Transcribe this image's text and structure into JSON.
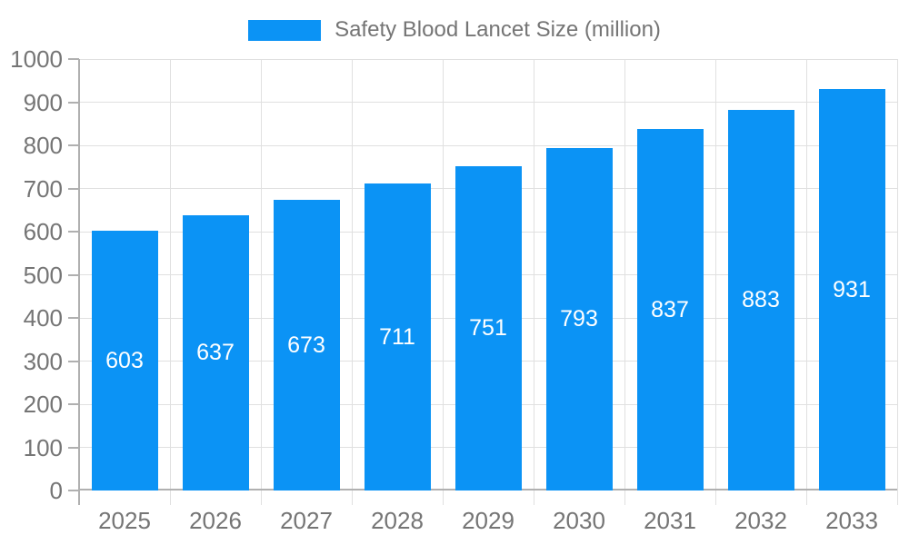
{
  "chart_data": {
    "type": "bar",
    "title": "Safety Blood Lancet Size (million)",
    "categories": [
      "2025",
      "2026",
      "2027",
      "2028",
      "2029",
      "2030",
      "2031",
      "2032",
      "2033"
    ],
    "values": [
      603,
      637,
      673,
      711,
      751,
      793,
      837,
      883,
      931
    ],
    "xlabel": "",
    "ylabel": "",
    "ylim": [
      0,
      1000
    ],
    "ytick_step": 100,
    "grid": true,
    "legend_position": "top",
    "colors": {
      "bar": "#0b93f5",
      "grid": "#e0e0e0",
      "axis": "#b0b0b0",
      "text": "#757575",
      "value_label": "#ffffff",
      "background": "#ffffff"
    }
  }
}
